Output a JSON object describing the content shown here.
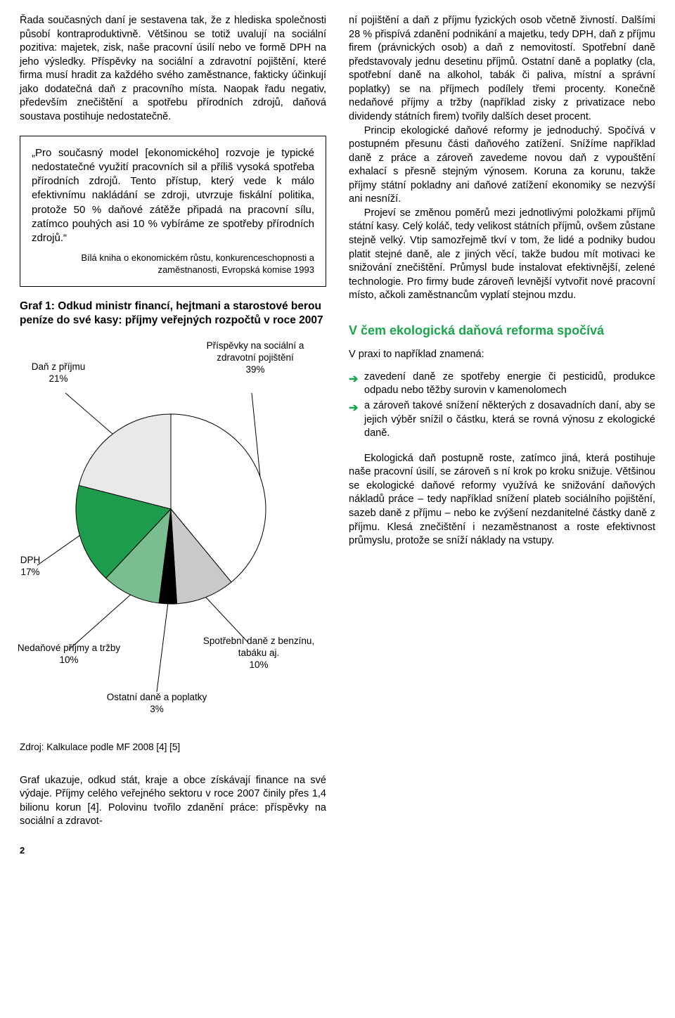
{
  "left": {
    "p1": "Řada současných daní je sestavena tak, že z hlediska společnosti působí kontraproduktivně. Většinou se totiž uvalují na sociální pozitiva: majetek, zisk, naše pracovní úsilí nebo ve formě DPH na jeho výsledky. Příspěvky na sociální a zdravotní pojištění, které firma musí hradit za každého svého zaměstnance, fakticky účinkují jako dodatečná daň z pracovního místa. Naopak řadu negativ, především znečištění a spotřebu přírodních zdrojů, daňová soustava postihuje nedostatečně.",
    "quote": "„Pro současný model [ekonomického] rozvoje je typické nedostatečné využití pracovních sil a příliš vysoká spotřeba přírodních zdrojů. Tento přístup, který vede k málo efektivnímu nakládání se zdroji, utvrzuje fiskální politika, protože 50 % daňové zátěže připadá na pracovní sílu, zatímco pouhých asi 10 % vybíráme ze spotřeby přírodních zdrojů.“",
    "quote_citation": "Bílá kniha o ekonomickém růstu, konkurenceschopnosti a zaměstnanosti, Evropská komise 1993",
    "graf_title": "Graf 1: Odkud ministr financí, hejtmani a starostové berou peníze do své kasy: příjmy veřejných rozpočtů v roce 2007",
    "chart": {
      "type": "pie",
      "background_color": "#ffffff",
      "stroke_color": "#000000",
      "label_fontsize": 13.5,
      "slices": [
        {
          "label": "Příspěvky na sociální a zdravotní pojištění",
          "value": 39,
          "value_label": "39%",
          "color": "#ffffff"
        },
        {
          "label": "Spotřební daně z benzínu, tabáku aj.",
          "value": 10,
          "value_label": "10%",
          "color": "#c9c9c9"
        },
        {
          "label": "Ostatní daně a poplatky",
          "value": 3,
          "value_label": "3%",
          "color": "#000000"
        },
        {
          "label": "Nedaňové příjmy a tržby",
          "value": 10,
          "value_label": "10%",
          "color": "#79bd91"
        },
        {
          "label": "DPH",
          "value": 17,
          "value_label": "17%",
          "color": "#1e9c4e"
        },
        {
          "label": "Daň z příjmu",
          "value": 21,
          "value_label": "21%",
          "color": "#e9e9e9"
        }
      ]
    },
    "source": "Zdroj: Kalkulace podle MF 2008 [4] [5]",
    "footer": "Graf ukazuje, odkud stát, kraje a obce získávají finance na své výdaje. Příjmy celého veřejného sektoru v roce 2007 činily přes 1,4 bilionu korun [4]. Polovinu tvořilo zdanění práce: příspěvky na sociální a zdravot-"
  },
  "right": {
    "p1": "ní pojištění a daň z příjmu fyzických osob včetně živností. Dalšími 28 % přispívá zdanění podnikání a majetku, tedy DPH, daň z příjmu firem (právnických osob) a daň z nemovitostí. Spotřební daně představovaly jednu desetinu příjmů. Ostatní daně a poplatky (cla, spotřební daně na alkohol, tabák či paliva, místní a správní poplatky) se na příjmech podílely třemi procenty. Konečně nedaňové příjmy a tržby (například zisky z privatizace nebo dividendy státních firem) tvořily dalších deset procent.",
    "p2": "Princip ekologické daňové reformy je jednoduchý. Spočívá v postupném přesunu části daňového zatížení. Snížíme například daně z práce a zároveň zavedeme novou daň z vypouštění exhalací s přesně stejným výnosem. Koruna za korunu, takže příjmy státní pokladny ani daňové zatížení ekonomiky se nezvýší ani nesníží.",
    "p3": "Projeví se změnou poměrů mezi jednotlivými položkami příjmů státní kasy. Celý koláč, tedy velikost státních příjmů, ovšem zůstane stejně velký. Vtip samozřejmě tkví v tom, že lidé a podniky budou platit stejné daně, ale z jiných věcí, takže budou mít motivaci ke snižování znečištění. Průmysl bude instalovat efektivnější, zelené technologie. Pro firmy bude zároveň levnější vytvořit nové pracovní místo, ačkoli zaměstnancům vyplatí stejnou mzdu.",
    "heading": "V čem ekologická daňová reforma spočívá",
    "leadin": "V praxi to například znamená:",
    "bullets": [
      "zavedení daně ze spotřeby energie či pesticidů, produkce odpadu nebo těžby surovin v kamenolomech",
      "a zároveň takové snížení některých z dosavadních daní, aby se jejich výběr snížil o částku, která se rovná výnosu z ekologické daně."
    ],
    "p4": "Ekologická daň postupně roste, zatímco jiná, která postihuje naše pracovní úsilí, se zároveň s ní krok po kroku snižuje. Většinou se ekologické daňové reformy využívá ke snižování daňových nákladů práce – tedy například snížení plateb sociálního pojištění, sazeb daně z příjmu – nebo ke zvýšení nezdanitelné částky daně z příjmu. Klesá znečištění i nezaměstnanost a roste efektivnost průmyslu, protože se sníží náklady na vstupy."
  },
  "page_number": "2"
}
